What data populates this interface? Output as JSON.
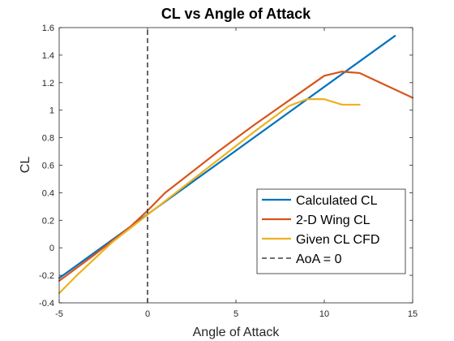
{
  "chart_data": {
    "type": "line",
    "title": "CL vs Angle of Attack",
    "xlabel": "Angle of Attack",
    "ylabel": "CL",
    "xlim": [
      -5,
      15
    ],
    "ylim": [
      -0.4,
      1.6
    ],
    "xticks": [
      "-5",
      "0",
      "5",
      "10",
      "15"
    ],
    "yticks": [
      "-0.4",
      "-0.2",
      "0",
      "0.2",
      "0.4",
      "0.6",
      "0.8",
      "1",
      "1.2",
      "1.4",
      "1.6"
    ],
    "grid": false,
    "legend_position": "bottom-right",
    "series": [
      {
        "name": "Calculated CL",
        "color": "#0072BD",
        "style": "solid",
        "x": [
          -5,
          14
        ],
        "y": [
          -0.22,
          1.54
        ]
      },
      {
        "name": "2-D Wing CL",
        "color": "#D95319",
        "style": "solid",
        "x": [
          -5,
          -3,
          -1,
          0,
          1,
          2,
          4,
          6,
          8,
          9,
          10,
          11,
          12,
          13,
          15
        ],
        "y": [
          -0.24,
          -0.05,
          0.15,
          0.27,
          0.4,
          0.5,
          0.7,
          0.89,
          1.07,
          1.16,
          1.25,
          1.28,
          1.27,
          1.21,
          1.09
        ]
      },
      {
        "name": "Given CL CFD",
        "color": "#EDB120",
        "style": "solid",
        "x": [
          -5,
          -4,
          -2,
          0,
          2,
          4,
          6,
          8,
          9,
          10,
          11,
          12
        ],
        "y": [
          -0.33,
          -0.2,
          0.04,
          0.24,
          0.44,
          0.64,
          0.84,
          1.03,
          1.08,
          1.08,
          1.04,
          1.04
        ]
      },
      {
        "name": "AoA = 0",
        "color": "#404040",
        "style": "dashed",
        "x": [
          0,
          0
        ],
        "y": [
          -0.4,
          1.6
        ]
      }
    ]
  }
}
